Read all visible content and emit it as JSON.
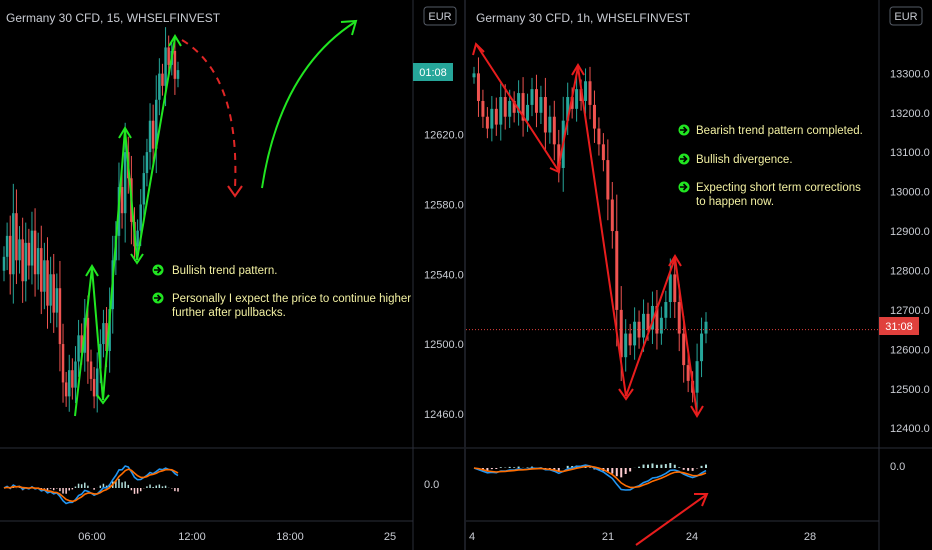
{
  "chart_data": [
    {
      "type": "candlestick",
      "title": "Germany 30 CFD, 15, WHSELFINVEST",
      "currency": "EUR",
      "x_ticks": [
        "06:00",
        "12:00",
        "18:00",
        "25"
      ],
      "y_ticks": [
        "12460.0",
        "12500.0",
        "12540.0",
        "12580.0",
        "12620.0"
      ],
      "ylim": [
        12445,
        12680
      ],
      "price_tag": "01:08",
      "price_tag_value": 12660,
      "oscillator_tick": "0.0",
      "candles_close": [
        12550,
        12562,
        12540,
        12575,
        12548,
        12560,
        12536,
        12558,
        12545,
        12565,
        12540,
        12555,
        12530,
        12548,
        12522,
        12540,
        12518,
        12532,
        12500,
        12478,
        12470,
        12485,
        12475,
        12490,
        12505,
        12495,
        12515,
        12490,
        12480,
        12470,
        12486,
        12500,
        12512,
        12496,
        12520,
        12548,
        12562,
        12590,
        12575,
        12610,
        12595,
        12570,
        12556,
        12565,
        12580,
        12598,
        12610,
        12628,
        12612,
        12640,
        12655,
        12648,
        12670,
        12660,
        12668,
        12652,
        12657
      ],
      "annotations": [
        "Bullish trend pattern.",
        "Personally I expect the price to continue higher further after pullbacks."
      ]
    },
    {
      "type": "candlestick",
      "title": "Germany 30 CFD, 1h, WHSELFINVEST",
      "currency": "EUR",
      "x_ticks": [
        "4",
        "21",
        "24",
        "28"
      ],
      "y_ticks": [
        "12400.0",
        "12500.0",
        "12600.0",
        "12700.0",
        "12800.0",
        "12900.0",
        "13000.0",
        "13100.0",
        "13200.0",
        "13300.0"
      ],
      "ylim": [
        12370,
        13410
      ],
      "price_tag": "31:08",
      "price_tag_value": 12650,
      "oscillator_tick": "0.0",
      "candles_close": [
        13300,
        13230,
        13190,
        13160,
        13210,
        13170,
        13240,
        13190,
        13230,
        13200,
        13250,
        13180,
        13220,
        13260,
        13200,
        13240,
        13150,
        13190,
        13120,
        13060,
        13180,
        13240,
        13210,
        13260,
        13230,
        13280,
        13220,
        13160,
        13120,
        13080,
        12980,
        12900,
        12700,
        12580,
        12640,
        12610,
        12670,
        12630,
        12690,
        12650,
        12710,
        12640,
        12680,
        12720,
        12790,
        12720,
        12640,
        12560,
        12520,
        12490,
        12570,
        12640,
        12670
      ],
      "annotations": [
        "Bearish trend pattern completed.",
        "Bullish divergence.",
        "Expecting short term corrections to happen now."
      ]
    }
  ]
}
